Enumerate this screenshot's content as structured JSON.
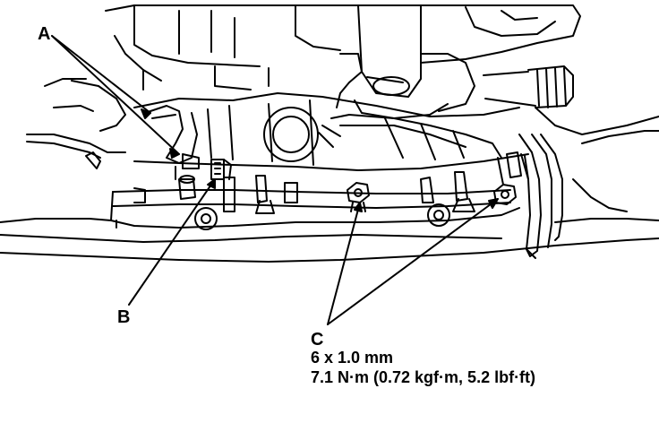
{
  "callouts": {
    "a": "A",
    "b": "B",
    "c": "C"
  },
  "spec": {
    "bolt_size": "6 x 1.0 mm",
    "torque": "7.1 N·m (0.72 kgf·m, 5.2 lbf·ft)"
  },
  "colors": {
    "line": "#000000",
    "background": "#ffffff"
  }
}
